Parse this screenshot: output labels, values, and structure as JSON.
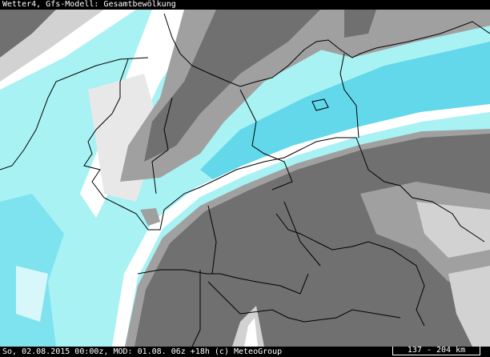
{
  "header": {
    "title": "Wetter4, Gfs-Modell: Gesamtbewölkung"
  },
  "footer": {
    "info": "So, 02.08.2015 00:00z, MOD: 01.08. 06z +18h (c) MeteoGroup",
    "scale": "137 - 204 km"
  },
  "colors": {
    "clear": "#ffffff",
    "cyan_light": "#a8f2f4",
    "cyan": "#62d8ea",
    "gray_light": "#d2d2d2",
    "gray_mid": "#a0a0a0",
    "gray_dark": "#707070",
    "border": "#000000"
  }
}
